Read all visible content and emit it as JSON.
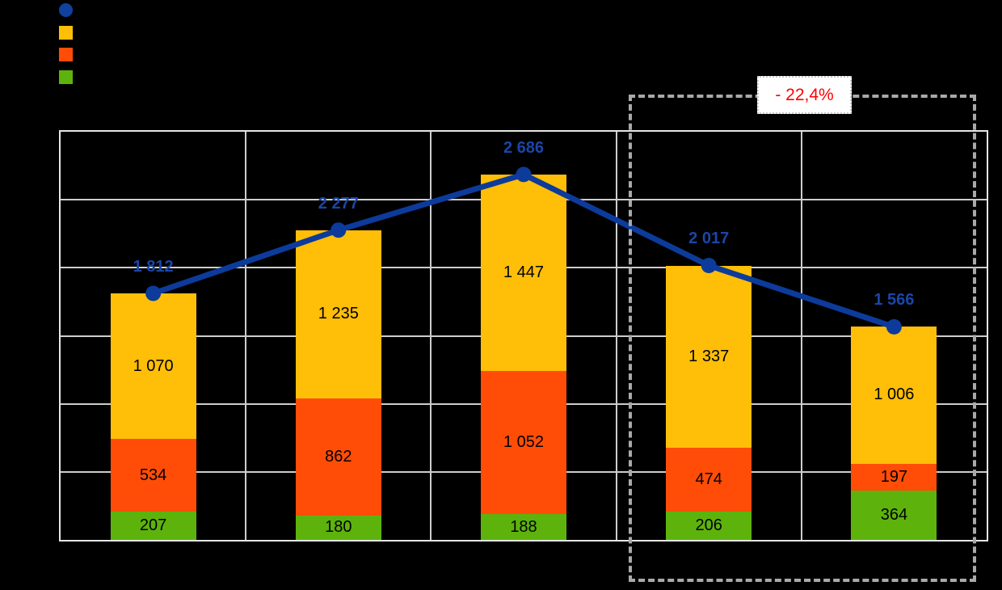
{
  "page": {
    "background_color": "#000000"
  },
  "legend": {
    "items": [
      {
        "name": "total-line",
        "shape": "circle",
        "color": "#11419E",
        "label": ""
      },
      {
        "name": "series-yellow",
        "shape": "square",
        "color": "#FFBE07",
        "label": ""
      },
      {
        "name": "series-orange",
        "shape": "square",
        "color": "#FF4D08",
        "label": ""
      },
      {
        "name": "series-green",
        "shape": "square",
        "color": "#5DB30C",
        "label": ""
      }
    ]
  },
  "annotation": {
    "label": "- 22,4%",
    "text_color": "#FF0000",
    "box_background": "#FFFFFF",
    "encloses": "last two categories"
  },
  "chart_data": {
    "type": "bar",
    "subtype": "stacked-bars-with-total-line",
    "categories": [
      "",
      "",
      "",
      "",
      ""
    ],
    "series": [
      {
        "name": "green-bottom-segment",
        "render": "bar",
        "color": "#5DB30C",
        "values": [
          207,
          180,
          188,
          206,
          364
        ],
        "labels": [
          "207",
          "180",
          "188",
          "206",
          "364"
        ]
      },
      {
        "name": "orange-middle-segment",
        "render": "bar",
        "color": "#FF4D08",
        "values": [
          534,
          862,
          1052,
          474,
          197
        ],
        "labels": [
          "534",
          "862",
          "1 052",
          "474",
          "197"
        ]
      },
      {
        "name": "yellow-top-segment",
        "render": "bar",
        "color": "#FFBE07",
        "values": [
          1070,
          1235,
          1447,
          1337,
          1006
        ],
        "labels": [
          "1 070",
          "1 235",
          "1 447",
          "1 337",
          "1 006"
        ]
      },
      {
        "name": "total-line",
        "render": "line",
        "color": "#0C3B9B",
        "label_color": "#1A46A8",
        "values": [
          1812,
          2277,
          2686,
          2017,
          1566
        ],
        "labels": [
          "1 812",
          "2 277",
          "2 686",
          "2 017",
          "1 566"
        ]
      }
    ],
    "ylim": [
      0,
      3000
    ],
    "grid_step": 500,
    "grid": true,
    "legend_position": "top-left",
    "axis_labels_visible": false,
    "annotation": {
      "text": "- 22,4%",
      "applies_to": "last two categories"
    }
  }
}
